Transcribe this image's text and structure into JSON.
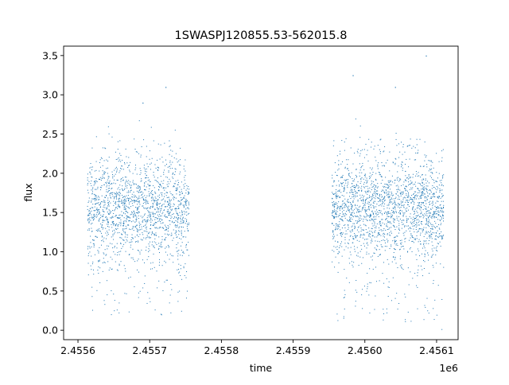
{
  "chart_data": {
    "type": "scatter",
    "title": "1SWASPJ120855.53-562015.8",
    "xlabel": "time",
    "ylabel": "flux",
    "x_offset_label": "1e6",
    "xlim": [
      2455580,
      2456130
    ],
    "ylim": [
      -0.12,
      3.62
    ],
    "x_ticks": [
      2455600,
      2455700,
      2455800,
      2455900,
      2456000,
      2456100
    ],
    "x_tick_labels": [
      "2.4556",
      "2.4557",
      "2.4558",
      "2.4559",
      "2.4560",
      "2.4561"
    ],
    "y_ticks": [
      0.0,
      0.5,
      1.0,
      1.5,
      2.0,
      2.5,
      3.0,
      3.5
    ],
    "y_tick_labels": [
      "0.0",
      "0.5",
      "1.0",
      "1.5",
      "2.0",
      "2.5",
      "3.0",
      "3.5"
    ],
    "grid": false,
    "point_color": "#1f77b4",
    "segments": [
      {
        "x_range": [
          2455613,
          2455754
        ],
        "flux_median": 1.55,
        "typical_range": [
          0.2,
          2.5
        ],
        "max": 3.1
      },
      {
        "x_range": [
          2455954,
          2456109
        ],
        "flux_median": 1.55,
        "typical_range": [
          0.1,
          2.5
        ],
        "max": 3.5
      }
    ],
    "outliers": [
      {
        "x": 2455722,
        "y": 3.1
      },
      {
        "x": 2455983,
        "y": 3.25
      },
      {
        "x": 2456085,
        "y": 3.5
      },
      {
        "x": 2456042,
        "y": 3.1
      },
      {
        "x": 2455690,
        "y": 2.9
      }
    ]
  }
}
